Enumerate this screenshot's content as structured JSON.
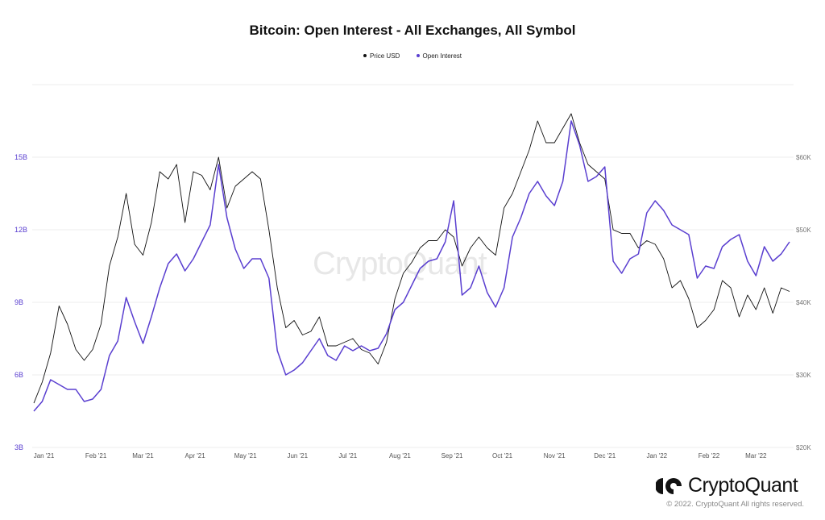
{
  "chart_data": {
    "type": "line",
    "title": "Bitcoin: Open Interest - All Exchanges, All Symbol",
    "legend": {
      "placement": "top-center",
      "entries": [
        "Price USD",
        "Open Interest"
      ]
    },
    "grid": {
      "horizontal": true,
      "vertical": false
    },
    "x_ticks": [
      "Jan '21",
      "Feb '21",
      "Mar '21",
      "Apr '21",
      "May '21",
      "Jun '21",
      "Jul '21",
      "Aug '21",
      "Sep '21",
      "Oct '21",
      "Nov '21",
      "Dec '21",
      "Jan '22",
      "Feb '22",
      "Mar '22"
    ],
    "x_tick_dates": [
      "2021-01-01",
      "2021-02-01",
      "2021-03-01",
      "2021-04-01",
      "2021-05-01",
      "2021-06-01",
      "2021-07-01",
      "2021-08-01",
      "2021-09-01",
      "2021-10-01",
      "2021-11-01",
      "2021-12-01",
      "2022-01-01",
      "2022-02-01",
      "2022-03-01"
    ],
    "xlim": [
      "2020-12-26",
      "2022-03-21"
    ],
    "y_left": {
      "label": "",
      "unit": "B",
      "range": [
        3,
        18
      ],
      "ticks": [
        "3B",
        "6B",
        "9B",
        "12B",
        "15B"
      ],
      "tick_values": [
        3,
        6,
        9,
        12,
        15
      ],
      "color": "#5a3fd0"
    },
    "y_right": {
      "label": "",
      "unit": "USD (K)",
      "range": [
        20,
        70
      ],
      "ticks": [
        "$20K",
        "$30K",
        "$40K",
        "$50K",
        "$60K"
      ],
      "tick_values": [
        20,
        30,
        40,
        50,
        60
      ],
      "color": "#777777"
    },
    "x": [
      "2020-12-26",
      "2020-12-31",
      "2021-01-05",
      "2021-01-10",
      "2021-01-15",
      "2021-01-20",
      "2021-01-25",
      "2021-01-30",
      "2021-02-04",
      "2021-02-09",
      "2021-02-14",
      "2021-02-19",
      "2021-02-24",
      "2021-03-01",
      "2021-03-06",
      "2021-03-11",
      "2021-03-16",
      "2021-03-21",
      "2021-03-26",
      "2021-03-31",
      "2021-04-05",
      "2021-04-10",
      "2021-04-15",
      "2021-04-20",
      "2021-04-25",
      "2021-04-30",
      "2021-05-05",
      "2021-05-10",
      "2021-05-15",
      "2021-05-20",
      "2021-05-25",
      "2021-05-30",
      "2021-06-04",
      "2021-06-09",
      "2021-06-14",
      "2021-06-19",
      "2021-06-24",
      "2021-06-29",
      "2021-07-04",
      "2021-07-09",
      "2021-07-14",
      "2021-07-19",
      "2021-07-24",
      "2021-07-29",
      "2021-08-03",
      "2021-08-08",
      "2021-08-13",
      "2021-08-18",
      "2021-08-23",
      "2021-08-28",
      "2021-09-02",
      "2021-09-07",
      "2021-09-12",
      "2021-09-17",
      "2021-09-22",
      "2021-09-27",
      "2021-10-02",
      "2021-10-07",
      "2021-10-12",
      "2021-10-17",
      "2021-10-22",
      "2021-10-27",
      "2021-11-01",
      "2021-11-06",
      "2021-11-11",
      "2021-11-16",
      "2021-11-21",
      "2021-11-26",
      "2021-12-01",
      "2021-12-06",
      "2021-12-11",
      "2021-12-16",
      "2021-12-21",
      "2021-12-26",
      "2021-12-31",
      "2022-01-05",
      "2022-01-10",
      "2022-01-15",
      "2022-01-20",
      "2022-01-25",
      "2022-01-30",
      "2022-02-04",
      "2022-02-09",
      "2022-02-14",
      "2022-02-19",
      "2022-02-24",
      "2022-03-01",
      "2022-03-06",
      "2022-03-11",
      "2022-03-16",
      "2022-03-21"
    ],
    "series": [
      {
        "name": "Price USD",
        "axis": "right",
        "color": "#111111",
        "values": [
          26.1,
          29,
          33,
          39.5,
          37,
          33.5,
          32,
          33.5,
          37,
          45,
          49,
          55,
          48,
          46.5,
          51,
          58,
          57,
          59,
          51,
          58,
          57.5,
          55.5,
          60,
          53,
          56,
          57,
          58,
          57,
          50,
          42,
          36.5,
          37.5,
          35.5,
          36,
          38,
          34,
          34,
          34.5,
          35,
          33.5,
          33,
          31.5,
          34.5,
          40.5,
          44,
          45.5,
          47.5,
          48.5,
          48.5,
          50,
          49,
          45,
          47.5,
          49,
          47.5,
          46.5,
          53,
          55,
          58,
          61,
          65,
          62,
          62,
          64,
          66,
          62,
          59,
          58,
          57,
          50,
          49.5,
          49.5,
          47.5,
          48.5,
          48,
          46,
          42,
          43,
          40.5,
          36.5,
          37.5,
          39,
          43,
          42,
          38,
          41,
          39,
          42,
          38.5,
          42,
          41.5
        ]
      },
      {
        "name": "Open Interest",
        "axis": "left",
        "color": "#5a3fd0",
        "values": [
          4.5,
          4.9,
          5.8,
          5.6,
          5.4,
          5.4,
          4.9,
          5.0,
          5.4,
          6.8,
          7.4,
          9.2,
          8.2,
          7.3,
          8.4,
          9.6,
          10.6,
          11.0,
          10.3,
          10.8,
          11.5,
          12.2,
          14.7,
          12.5,
          11.2,
          10.4,
          10.8,
          10.8,
          10.0,
          7.0,
          6.0,
          6.2,
          6.5,
          7.0,
          7.5,
          6.8,
          6.6,
          7.2,
          7.0,
          7.2,
          7.0,
          7.1,
          7.7,
          8.7,
          9.0,
          9.7,
          10.4,
          10.7,
          10.8,
          11.5,
          13.2,
          9.3,
          9.6,
          10.5,
          9.4,
          8.8,
          9.6,
          11.7,
          12.5,
          13.5,
          14.0,
          13.4,
          13.0,
          14.0,
          16.5,
          15.5,
          14.0,
          14.2,
          14.6,
          10.7,
          10.2,
          10.8,
          11.0,
          12.7,
          13.2,
          12.8,
          12.2,
          12.0,
          11.8,
          10.0,
          10.5,
          10.4,
          11.3,
          11.6,
          11.8,
          10.7,
          10.1,
          11.3,
          10.7,
          11.0,
          11.5
        ]
      }
    ]
  },
  "watermark": "CryptoQuant",
  "footer": {
    "logo_text": "CryptoQuant",
    "copyright": "© 2022. CryptoQuant All rights reserved."
  }
}
